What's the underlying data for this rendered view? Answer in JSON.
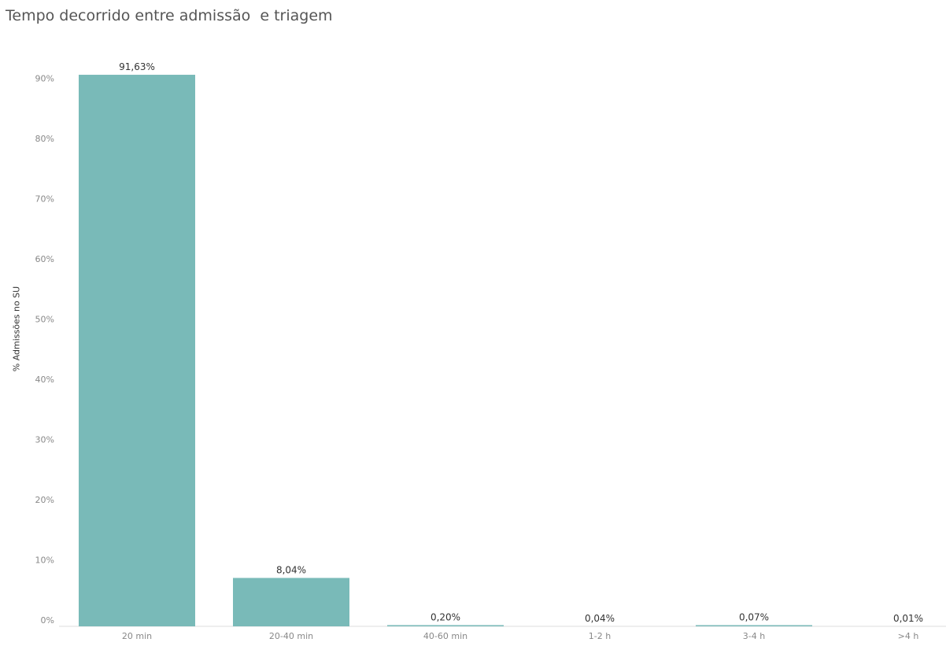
{
  "chart_data": {
    "type": "bar",
    "title": "Tempo decorrido entre admissão  e triagem",
    "xlabel": "",
    "ylabel": "% Admissões no SU",
    "categories": [
      "20 min",
      "20-40 min",
      "40-60 min",
      "1-2 h",
      "3-4 h",
      ">4 h"
    ],
    "values": [
      91.63,
      8.04,
      0.2,
      0.04,
      0.07,
      0.01
    ],
    "data_labels": [
      "91,63%",
      "8,04%",
      "0,20%",
      "0,04%",
      "0,07%",
      "0,01%"
    ],
    "ylim": [
      0,
      100
    ],
    "yticks": [
      0,
      10,
      20,
      30,
      40,
      50,
      60,
      70,
      80,
      90
    ],
    "ytick_labels": [
      "0%",
      "10%",
      "20%",
      "30%",
      "40%",
      "50%",
      "60%",
      "70%",
      "80%",
      "90%"
    ],
    "grid": false,
    "legend": "none",
    "bar_color": "#79bab8"
  }
}
